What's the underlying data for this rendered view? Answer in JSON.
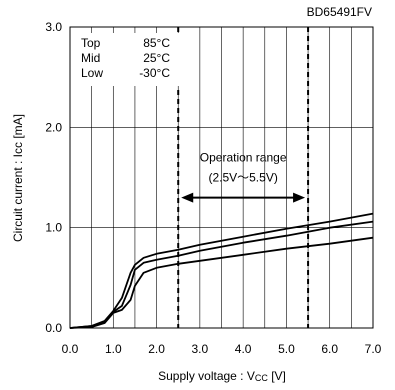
{
  "chart_data": {
    "type": "line",
    "part_number": "BD65491FV",
    "xlabel": "Supply voltage : V",
    "xlabel_sub": "CC",
    "xlabel_unit": " [V]",
    "ylabel": "Circuit current : Icc [mA]",
    "xlim": [
      0,
      7
    ],
    "ylim": [
      0,
      3
    ],
    "x_ticks": [
      "0.0",
      "1.0",
      "2.0",
      "3.0",
      "4.0",
      "5.0",
      "6.0",
      "7.0"
    ],
    "y_ticks": [
      "0.0",
      "1.0",
      "2.0",
      "3.0"
    ],
    "grid": true,
    "legend": {
      "placement": "top-left",
      "rows": [
        {
          "label": "Top",
          "value": "85°C"
        },
        {
          "label": "Mid",
          "value": "25°C"
        },
        {
          "label": "Low",
          "value": "-30°C"
        }
      ]
    },
    "annotation": {
      "line1": "Operation range",
      "line2": "(2.5V～5.5V)",
      "x_start": 2.5,
      "x_end": 5.5,
      "arrow_y": 1.3,
      "text_y1": 1.7,
      "text_y2": 1.5
    },
    "series": [
      {
        "name": "Top",
        "x": [
          0,
          0.5,
          0.8,
          1.0,
          1.2,
          1.4,
          1.5,
          1.7,
          2.0,
          2.5,
          3.0,
          4.0,
          5.0,
          6.0,
          7.0
        ],
        "y": [
          0,
          0.02,
          0.07,
          0.17,
          0.3,
          0.55,
          0.63,
          0.7,
          0.74,
          0.78,
          0.83,
          0.91,
          0.99,
          1.06,
          1.14
        ]
      },
      {
        "name": "Mid",
        "x": [
          0,
          0.5,
          0.8,
          1.0,
          1.2,
          1.4,
          1.5,
          1.7,
          2.0,
          2.5,
          3.0,
          4.0,
          5.0,
          6.0,
          7.0
        ],
        "y": [
          0,
          0.02,
          0.06,
          0.16,
          0.22,
          0.43,
          0.58,
          0.65,
          0.68,
          0.72,
          0.77,
          0.85,
          0.92,
          1.0,
          1.06
        ]
      },
      {
        "name": "Low",
        "x": [
          0,
          0.5,
          0.8,
          1.0,
          1.2,
          1.4,
          1.5,
          1.7,
          2.0,
          2.5,
          3.0,
          4.0,
          5.0,
          6.0,
          7.0
        ],
        "y": [
          0,
          0.01,
          0.05,
          0.15,
          0.18,
          0.28,
          0.42,
          0.55,
          0.6,
          0.64,
          0.67,
          0.73,
          0.79,
          0.84,
          0.9
        ]
      }
    ]
  }
}
